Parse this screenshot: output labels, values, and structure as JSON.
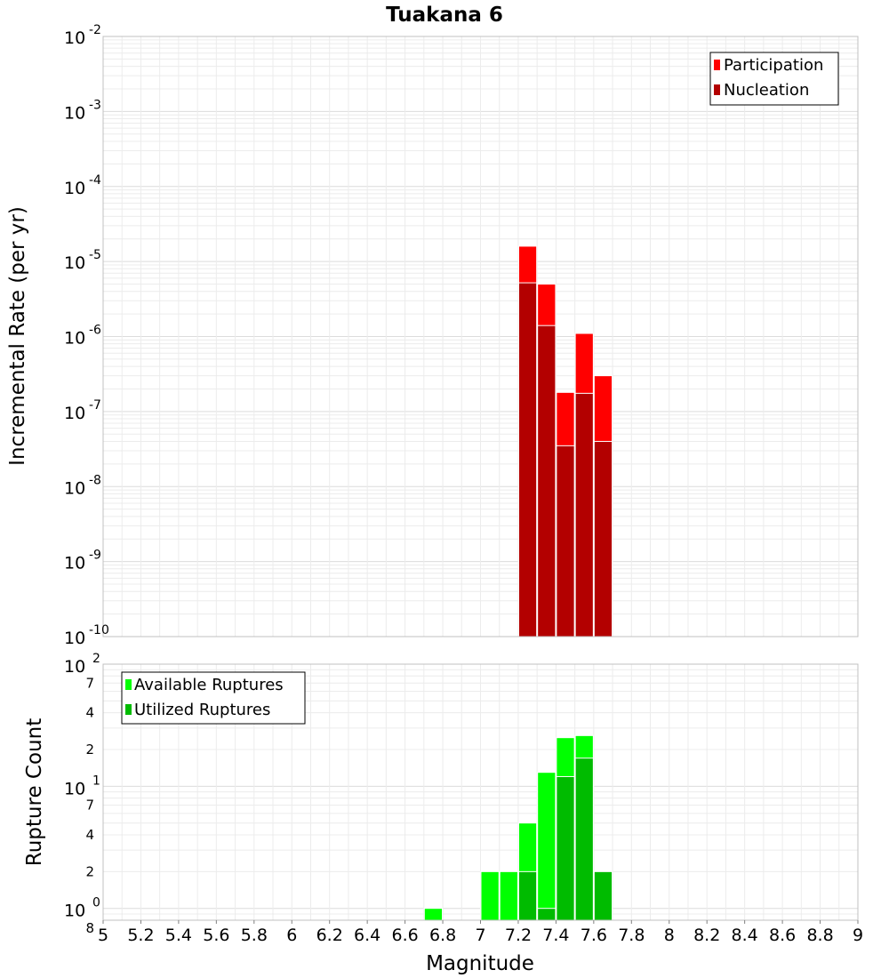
{
  "chart_data": [
    {
      "type": "bar",
      "title": "Tuakana 6",
      "ylabel": "Incremental Rate (per yr)",
      "xlabel": "Magnitude",
      "y_scale": "log",
      "ylim": [
        1e-10,
        0.01
      ],
      "xlim": [
        5,
        9
      ],
      "bin_width": 0.1,
      "y_tick_base": "10",
      "y_tick_exponents": [
        "-10",
        "-9",
        "-8",
        "-7",
        "-6",
        "-5",
        "-4",
        "-3",
        "-2"
      ],
      "legend_position": "top-right",
      "series": [
        {
          "name": "Participation",
          "color": "#ff0000",
          "x": [
            7.25,
            7.35,
            7.45,
            7.55,
            7.65
          ],
          "values": [
            1.6e-05,
            5e-06,
            1.8e-07,
            1.1e-06,
            3e-07
          ]
        },
        {
          "name": "Nucleation",
          "color": "#b30000",
          "x": [
            7.25,
            7.35,
            7.45,
            7.55,
            7.65
          ],
          "values": [
            5.2e-06,
            1.4e-06,
            3.5e-08,
            1.75e-07,
            4e-08
          ]
        }
      ]
    },
    {
      "type": "bar",
      "ylabel": "Rupture Count",
      "xlabel": "Magnitude",
      "y_scale": "log",
      "ylim": [
        0.8,
        100
      ],
      "xlim": [
        5,
        9
      ],
      "bin_width": 0.1,
      "y_major_ticks": [
        {
          "value": 1,
          "base": "10",
          "exp": "0"
        },
        {
          "value": 10,
          "base": "10",
          "exp": "1"
        },
        {
          "value": 100,
          "base": "10",
          "exp": "2"
        }
      ],
      "y_minor_ticks": [
        {
          "value": 0.8,
          "label": "8"
        },
        {
          "value": 2,
          "label": "2"
        },
        {
          "value": 4,
          "label": "4"
        },
        {
          "value": 7,
          "label": "7"
        },
        {
          "value": 20,
          "label": "2"
        },
        {
          "value": 40,
          "label": "4"
        },
        {
          "value": 70,
          "label": "7"
        }
      ],
      "x_ticks": [
        "5",
        "5.2",
        "5.4",
        "5.6",
        "5.8",
        "6",
        "6.2",
        "6.4",
        "6.6",
        "6.8",
        "7",
        "7.2",
        "7.4",
        "7.6",
        "7.8",
        "8",
        "8.2",
        "8.4",
        "8.6",
        "8.8",
        "9"
      ],
      "legend_position": "top-left",
      "series": [
        {
          "name": "Available Ruptures",
          "color": "#00ff00",
          "x": [
            6.75,
            7.05,
            7.15,
            7.25,
            7.35,
            7.45,
            7.55,
            7.65
          ],
          "values": [
            1,
            2,
            2,
            5,
            13,
            25,
            26,
            2
          ]
        },
        {
          "name": "Utilized Ruptures",
          "color": "#00bb00",
          "x": [
            7.25,
            7.35,
            7.45,
            7.55,
            7.65
          ],
          "values": [
            2,
            1,
            12,
            17,
            2
          ]
        }
      ]
    }
  ]
}
